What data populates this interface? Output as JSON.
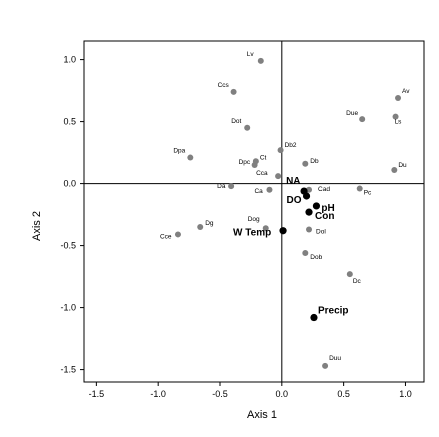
{
  "chart_data": {
    "type": "scatter",
    "xlabel": "Axis 1",
    "ylabel": "Axis 2",
    "xlim": [
      -1.6,
      1.15
    ],
    "ylim": [
      -1.6,
      1.15
    ],
    "xticks": [
      -1.5,
      -1.0,
      -0.5,
      0.0,
      0.5,
      1.0
    ],
    "yticks": [
      -1.5,
      -1.0,
      -0.5,
      0.0,
      0.5,
      1.0
    ],
    "xtick_labels": [
      "-1.5",
      "-1.0",
      "-0.5",
      "0.0",
      "0.5",
      "1.0"
    ],
    "ytick_labels": [
      "-1.5",
      "-1.0",
      "-0.5",
      "0.0",
      "0.5",
      "1.0"
    ],
    "reference_lines": {
      "x": 0,
      "y": 0
    },
    "colors": {
      "species": "#808080",
      "environment": "#000000"
    },
    "series": [
      {
        "role": "species",
        "points": [
          {
            "label": "Lv",
            "x": -0.17,
            "y": 0.99
          },
          {
            "label": "Ccs",
            "x": -0.39,
            "y": 0.74
          },
          {
            "label": "Av",
            "x": 0.94,
            "y": 0.69
          },
          {
            "label": "Due",
            "x": 0.65,
            "y": 0.52
          },
          {
            "label": "Ls",
            "x": 0.92,
            "y": 0.54
          },
          {
            "label": "Dot",
            "x": -0.28,
            "y": 0.45
          },
          {
            "label": "Db2",
            "x": -0.01,
            "y": 0.27
          },
          {
            "label": "Dpa",
            "x": -0.74,
            "y": 0.21
          },
          {
            "label": "Ct",
            "x": -0.21,
            "y": 0.18
          },
          {
            "label": "Db",
            "x": 0.19,
            "y": 0.16
          },
          {
            "label": "Dpc",
            "x": -0.22,
            "y": 0.15
          },
          {
            "label": "Du",
            "x": 0.91,
            "y": 0.11
          },
          {
            "label": "Cca",
            "x": -0.03,
            "y": 0.06
          },
          {
            "label": "Da",
            "x": -0.41,
            "y": -0.02
          },
          {
            "label": "Ca",
            "x": -0.1,
            "y": -0.05
          },
          {
            "label": "Cad",
            "x": 0.22,
            "y": -0.05
          },
          {
            "label": "Pc",
            "x": 0.63,
            "y": -0.04
          },
          {
            "label": "Dg",
            "x": -0.66,
            "y": -0.35
          },
          {
            "label": "Dog",
            "x": -0.13,
            "y": -0.36
          },
          {
            "label": "Cce",
            "x": -0.84,
            "y": -0.41
          },
          {
            "label": "Dol",
            "x": 0.22,
            "y": -0.37
          },
          {
            "label": "Dob",
            "x": 0.19,
            "y": -0.56
          },
          {
            "label": "Dc",
            "x": 0.55,
            "y": -0.73
          },
          {
            "label": "Duu",
            "x": 0.35,
            "y": -1.47
          }
        ]
      },
      {
        "role": "environment",
        "points": [
          {
            "label": "NA",
            "x": 0.18,
            "y": -0.06
          },
          {
            "label": "DO",
            "x": 0.2,
            "y": -0.1
          },
          {
            "label": "pH",
            "x": 0.28,
            "y": -0.18
          },
          {
            "label": "Con",
            "x": 0.22,
            "y": -0.23
          },
          {
            "label": "W Temp",
            "x": 0.01,
            "y": -0.38
          },
          {
            "label": "Precip",
            "x": 0.26,
            "y": -1.08
          }
        ]
      }
    ]
  }
}
